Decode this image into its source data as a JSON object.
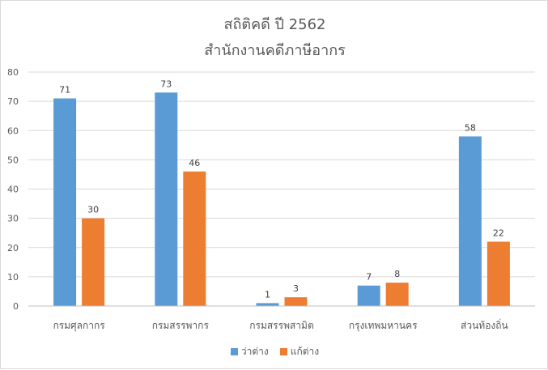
{
  "chart_data": {
    "type": "bar",
    "title": "สถิติคดี ปี 2562",
    "subtitle": "สำนักงานคดีภาษีอากร",
    "categories": [
      "กรมศุลกากร",
      "กรมสรรพากร",
      "กรมสรรพสามิต",
      "กรุงเทพมหานคร",
      "ส่วนท้องถิ่น"
    ],
    "series": [
      {
        "name": "ว่าต่าง",
        "color": "#5b9bd5",
        "values": [
          71,
          73,
          1,
          7,
          58
        ]
      },
      {
        "name": "แก้ต่าง",
        "color": "#ed7d31",
        "values": [
          30,
          46,
          3,
          8,
          22
        ]
      }
    ],
    "ylim": [
      0,
      80
    ],
    "yticks": [
      0,
      10,
      20,
      30,
      40,
      50,
      60,
      70,
      80
    ],
    "grid": true,
    "legend": "bottom"
  }
}
